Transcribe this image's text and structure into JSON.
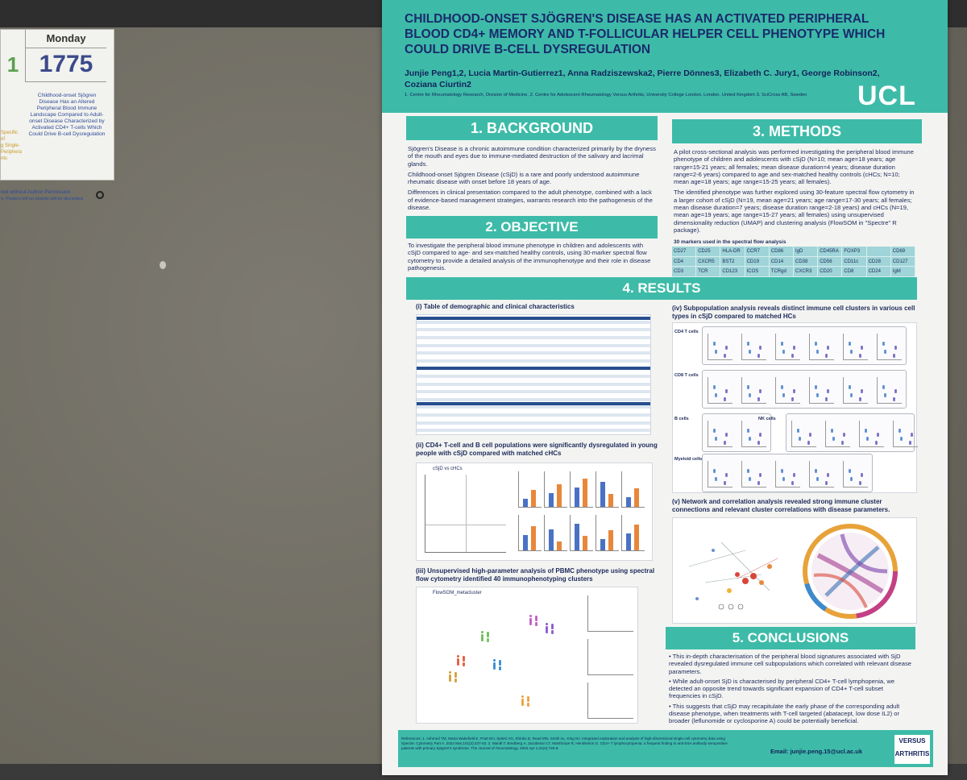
{
  "label_card": {
    "day": "Monday",
    "left_number": "1",
    "number": "1775",
    "title": "Childhood-onset Sjögren Disease Has an Altered Peripheral Blood Immune Landscape Compared to Adult-onset Disease Characterized by Activated CD4+ T-cells Which Could Drive B-cell Dysregulation",
    "left_fragment": "Specific\nof\ng Single-\nPeriphera\nnts",
    "footer_line1": "red without Author Permission",
    "footer_line2": "n. Posters left on boards will be discarded."
  },
  "poster": {
    "title": "CHILDHOOD-ONSET SJÖGREN'S DISEASE HAS AN ACTIVATED PERIPHERAL BLOOD CD4+ MEMORY AND T-FOLLICULAR HELPER CELL PHENOTYPE WHICH COULD DRIVE B-CELL DYSREGULATION",
    "authors": "Junjie Peng1,2, Lucia Martin-Gutierrez1, Anna Radziszewska2, Pierre Dönnes3, Elizabeth C. Jury1, George Robinson2, Coziana Ciurtin2",
    "affiliations": "1. Centre for Rheumatology Research, Division of Medicine, 2. Centre for Adolescent Rheumatology Versus Arthritis, University College London, London, United Kingdom 3. SciCross AB, Sweden",
    "logo": "UCL",
    "background": {
      "heading": "1. BACKGROUND",
      "p1": "Sjögren's Disease is a chronic autoimmune condition characterized primarily by the dryness of the mouth and eyes due to immune-mediated destruction of the salivary and lacrimal glands.",
      "p2": "Childhood-onset Sjögren Disease (cSjD) is a rare and poorly understood autoimmune rheumatic disease with onset before 18 years of age.",
      "p3": "Differences in clinical presentation compared to the adult phenotype, combined with a lack of evidence-based management strategies, warrants research into the pathogenesis of the disease."
    },
    "objective": {
      "heading": "2. OBJECTIVE",
      "p1": "To investigate the peripheral blood immune phenotype in children and adolescents with cSjD compared to age- and sex-matched healthy controls, using 30-marker spectral flow cytometry to provide a detailed analysis of the immunophenotype and their role in disease pathogenesis."
    },
    "methods": {
      "heading": "3. METHODS",
      "p1": "A pilot cross-sectional analysis was performed investigating the peripheral blood immune phenotype of children and adolescents with cSjD (N=10; mean age=18 years; age range=15-21 years; all females; mean disease duration=4 years; disease duration range=2-6 years) compared to age and sex-matched healthy controls (cHCs; N=10; mean age=18 years; age range=15-25 years; all females).",
      "p2": "The identified phenotype was further explored using 30-feature spectral flow cytometry in a larger cohort of cSjD (N=19, mean age=21 years; age range=17-30 years; all females; mean disease duration=7 years; disease duration range=2-18 years) and cHCs (N=19, mean age=19 years; age range=15-27 years; all females) using unsupervised dimensionality reduction (UMAP) and clustering analysis (FlowSOM in \"Spectre\" R package).",
      "markers_title": "30 markers used in the spectral flow analysis",
      "markers": [
        "CD27",
        "CD25",
        "HLA-DR",
        "CCR7",
        "CD86",
        "IgD",
        "CD45RA",
        "FOXP3",
        "",
        "CD69",
        "CD4",
        "CXCR5",
        "BST2",
        "CD19",
        "CD14",
        "CD38",
        "CD56",
        "CD11c",
        "CD28",
        "CD127",
        "CD3",
        "TCR",
        "CD123",
        "ICOS",
        "TCRgd",
        "CXCR3",
        "CD20",
        "CD8",
        "CD24",
        "IgM"
      ]
    },
    "results": {
      "heading": "4. RESULTS",
      "t1": "(i) Table of demographic and clinical characteristics",
      "t2": "(ii) CD4+ T-cell and B cell populations were significantly dysregulated in young people with cSjD compared with matched cHCs",
      "t2_chart": "cSjD vs cHCs",
      "t3": "(iii) Unsupervised high-parameter analysis of PBMC phenotype using spectral flow cytometry identified 40 immunophenotyping clusters",
      "t3_chart": "FlowSOM_metacluster",
      "t4": "(iv) Subpopulation analysis reveals distinct immune cell clusters in various cell types in cSjD compared to matched HCs",
      "t5": "(v) Network and correlation analysis revealed strong immune cluster connections and relevant cluster correlations with disease parameters.",
      "cell_types": [
        "CD4 T cells",
        "CD8 T cells",
        "B cells",
        "NK cells",
        "Myeloid cells"
      ]
    },
    "conclusions": {
      "heading": "5. CONCLUSIONS",
      "b1": "This in-depth characterisation of the peripheral blood signatures associated with SjD revealed dysregulated immune cell subpopulations which correlated with relevant disease parameters.",
      "b2": "While adult-onset SjD is characterised by peripheral CD4+ T-cell lymphopenia, we detected an opposite trend towards significant expansion of CD4+ T-cell subset frequencies in cSjD.",
      "b3": "This suggests that cSjD may recapitulate the early phase of the corresponding adult disease phenotype, when treatments with T-cell targeted (abatacept, low dose IL2) or broader (leflunomide or cyclosporine A) could be potentially beneficial."
    },
    "references": "References: 1. Ashmed TM, Marta Wakefield E, Pratt DH, Spiteri AG, Shinko D, Read MN, Smith AL, King NJ. Integrated exploration and analysis of high-dimensional single-cell cytometry data using Spectre. Cytometry Part A. 2022 Mar;101(3):237-53. 2. Mandl T, Bredberg A, Jacobsson LT, Manthorpe R, Henriksson G. CD4+ T lymphocytopenia: a frequent finding in anti-SSA antibody seropositive patients with primary Sjögren's syndrome. The Journal of rheumatology. 2004 Apr 1;31(4):726-8.",
    "email": "Email: junjie.peng.15@ucl.ac.uk",
    "versus_logo": "VERSUS ARTHRITIS"
  }
}
